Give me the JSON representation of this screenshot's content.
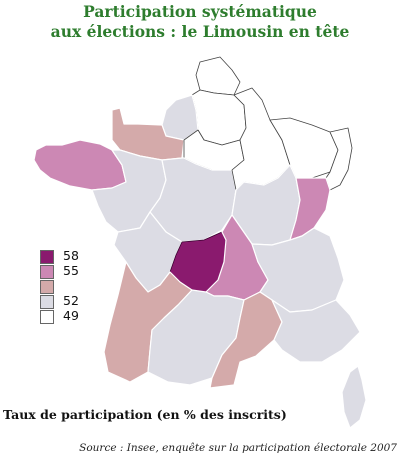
{
  "title": {
    "line1": "Participation systématique",
    "line2": "aux élections : le Limousin en tête"
  },
  "colors": {
    "c58": "#8a1a6e",
    "c55": "#cc88b4",
    "c53": "#d4aaaa",
    "c52": "#dcdce4",
    "c49": "#ffffff",
    "title": "#2e7d2e"
  },
  "legend": [
    {
      "label": "58",
      "color": "#8a1a6e"
    },
    {
      "label": "55",
      "color": "#cc88b4"
    },
    {
      "label": "",
      "color": "#d4aaaa"
    },
    {
      "label": "52",
      "color": "#dcdce4"
    },
    {
      "label": "49",
      "color": "#ffffff"
    }
  ],
  "regions": [
    {
      "name": "Nord-Pas-de-Calais",
      "color": "#ffffff"
    },
    {
      "name": "Picardie",
      "color": "#ffffff"
    },
    {
      "name": "Haute-Normandie",
      "color": "#dcdce4"
    },
    {
      "name": "Basse-Normandie",
      "color": "#d4aaaa"
    },
    {
      "name": "Bretagne",
      "color": "#cc88b4"
    },
    {
      "name": "Pays de la Loire",
      "color": "#dcdce4"
    },
    {
      "name": "Île-de-France",
      "color": "#ffffff"
    },
    {
      "name": "Centre",
      "color": "#dcdce4"
    },
    {
      "name": "Champagne-Ardenne",
      "color": "#ffffff"
    },
    {
      "name": "Lorraine",
      "color": "#ffffff"
    },
    {
      "name": "Alsace",
      "color": "#ffffff"
    },
    {
      "name": "Bourgogne",
      "color": "#dcdce4"
    },
    {
      "name": "Franche-Comté",
      "color": "#cc88b4"
    },
    {
      "name": "Poitou-Charentes",
      "color": "#dcdce4"
    },
    {
      "name": "Limousin",
      "color": "#8a1a6e"
    },
    {
      "name": "Auvergne",
      "color": "#cc88b4"
    },
    {
      "name": "Rhône-Alpes",
      "color": "#dcdce4"
    },
    {
      "name": "Aquitaine",
      "color": "#d4aaaa"
    },
    {
      "name": "Midi-Pyrénées",
      "color": "#dcdce4"
    },
    {
      "name": "Languedoc-Roussillon",
      "color": "#d4aaaa"
    },
    {
      "name": "Provence-Alpes-Côte d'Azur",
      "color": "#dcdce4"
    },
    {
      "name": "Corse",
      "color": "#dcdce4"
    }
  ],
  "caption": "Taux de participation (en % des inscrits)",
  "source": "Source : Insee, enquête sur la participation électorale 2007"
}
